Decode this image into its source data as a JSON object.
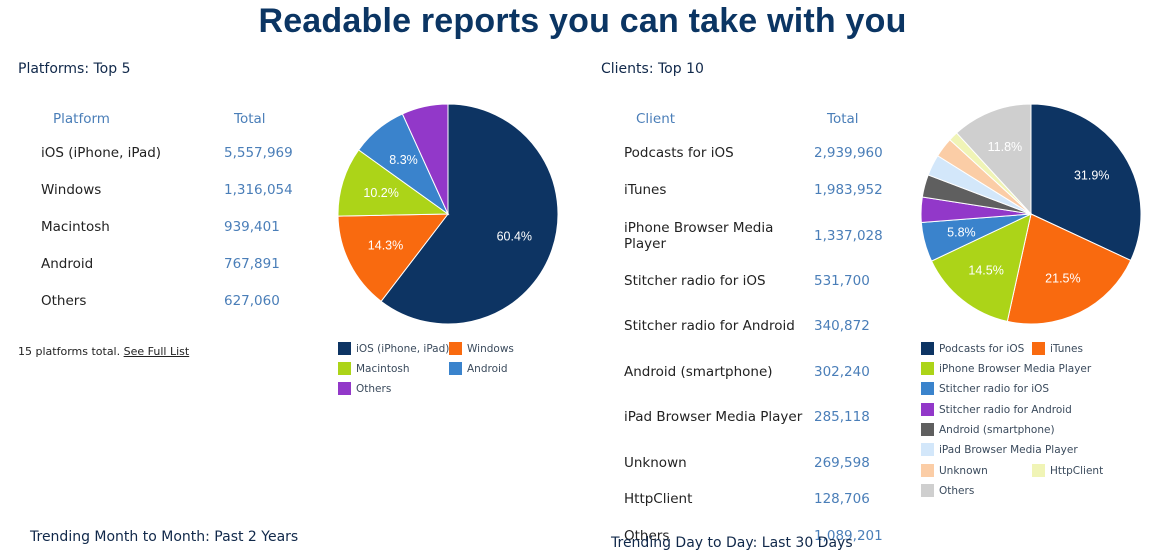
{
  "header": {
    "title": "Readable reports you can take with you"
  },
  "platforms": {
    "title": "Platforms: Top 5",
    "col_name": "Platform",
    "col_total": "Total",
    "rows": [
      {
        "name": "iOS (iPhone, iPad)",
        "total": "5,557,969"
      },
      {
        "name": "Windows",
        "total": "1,316,054"
      },
      {
        "name": "Macintosh",
        "total": "939,401"
      },
      {
        "name": "Android",
        "total": "767,891"
      },
      {
        "name": "Others",
        "total": "627,060"
      }
    ],
    "footnote_text": "15 platforms total.",
    "footnote_link": "See Full List"
  },
  "clients": {
    "title": "Clients: Top 10",
    "col_name": "Client",
    "col_total": "Total",
    "rows": [
      {
        "name": "Podcasts for iOS",
        "total": "2,939,960"
      },
      {
        "name": "iTunes",
        "total": "1,983,952"
      },
      {
        "name": "iPhone Browser Media Player",
        "total": "1,337,028"
      },
      {
        "name": "Stitcher radio for iOS",
        "total": "531,700"
      },
      {
        "name": "Stitcher radio for Android",
        "total": "340,872"
      },
      {
        "name": "Android (smartphone)",
        "total": "302,240"
      },
      {
        "name": "iPad Browser Media Player",
        "total": "285,118"
      },
      {
        "name": "Unknown",
        "total": "269,598"
      },
      {
        "name": "HttpClient",
        "total": "128,706"
      },
      {
        "name": "Others",
        "total": "1,089,201"
      }
    ]
  },
  "trending": {
    "month_title": "Trending Month to Month: Past 2 Years",
    "day_title": "Trending Day to Day: Last 30 Days"
  },
  "chart_data": [
    {
      "type": "pie",
      "series": [
        {
          "name": "iOS (iPhone, iPad)",
          "value": 60.4,
          "label": "60.4%",
          "color": "#0d3463"
        },
        {
          "name": "Windows",
          "value": 14.3,
          "label": "14.3%",
          "color": "#f96a0f"
        },
        {
          "name": "Macintosh",
          "value": 10.2,
          "label": "10.2%",
          "color": "#acd418"
        },
        {
          "name": "Android",
          "value": 8.3,
          "label": "8.3%",
          "color": "#3a83cc"
        },
        {
          "name": "Others",
          "value": 6.8,
          "label": "",
          "color": "#9238c9"
        }
      ],
      "legend": "bottom"
    },
    {
      "type": "pie",
      "series": [
        {
          "name": "Podcasts for iOS",
          "value": 31.9,
          "label": "31.9%",
          "color": "#0d3463"
        },
        {
          "name": "iTunes",
          "value": 21.5,
          "label": "21.5%",
          "color": "#f96a0f"
        },
        {
          "name": "iPhone Browser Media Player",
          "value": 14.5,
          "label": "14.5%",
          "color": "#acd418"
        },
        {
          "name": "Stitcher radio for iOS",
          "value": 5.8,
          "label": "5.8%",
          "color": "#3a83cc"
        },
        {
          "name": "Stitcher radio for Android",
          "value": 3.7,
          "label": "",
          "color": "#9238c9"
        },
        {
          "name": "Android (smartphone)",
          "value": 3.3,
          "label": "",
          "color": "#5f5f5f"
        },
        {
          "name": "iPad Browser Media Player",
          "value": 3.1,
          "label": "",
          "color": "#d3e7fa"
        },
        {
          "name": "Unknown",
          "value": 2.9,
          "label": "",
          "color": "#fbcda6"
        },
        {
          "name": "HttpClient",
          "value": 1.4,
          "label": "",
          "color": "#f0f4b6"
        },
        {
          "name": "Others",
          "value": 11.8,
          "label": "11.8%",
          "color": "#cfcfcf"
        }
      ],
      "legend": "bottom"
    }
  ]
}
